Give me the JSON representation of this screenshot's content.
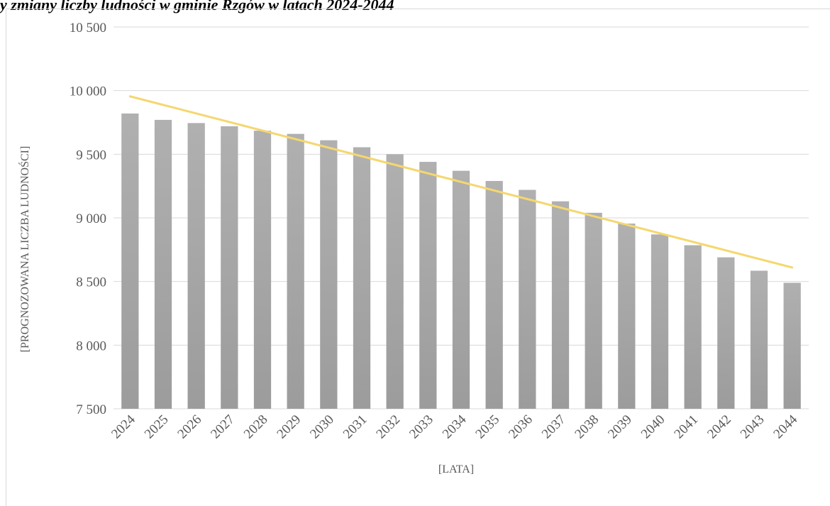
{
  "header": {
    "fragment": "y zmiany liczby ludności w gminie Rzgów w latach 2024-2044"
  },
  "chart_data": {
    "type": "bar",
    "categories": [
      "2024",
      "2025",
      "2026",
      "2027",
      "2028",
      "2029",
      "2030",
      "2031",
      "2032",
      "2033",
      "2034",
      "2035",
      "2036",
      "2037",
      "2038",
      "2039",
      "2040",
      "2041",
      "2042",
      "2043",
      "2044"
    ],
    "values": [
      9820,
      9770,
      9745,
      9720,
      9685,
      9660,
      9610,
      9555,
      9500,
      9440,
      9370,
      9290,
      9220,
      9130,
      9040,
      8955,
      8870,
      8785,
      8690,
      8585,
      8490
    ],
    "trendline": {
      "start": 9955,
      "end": 8610,
      "color": "#f5d76e"
    },
    "bar_color": "#a6a6a6",
    "xlabel": "[LATA]",
    "ylabel": "[PROGNOZOWANA LICZBA LUDNOŚCI]",
    "ylim": [
      7500,
      10500
    ],
    "yticks": [
      7500,
      8000,
      8500,
      9000,
      9500,
      10000,
      10500
    ],
    "ytick_labels": [
      "7 500",
      "8 000",
      "8 500",
      "9 000",
      "9 500",
      "10 000",
      "10 500"
    ],
    "grid": true,
    "legend": "none"
  }
}
